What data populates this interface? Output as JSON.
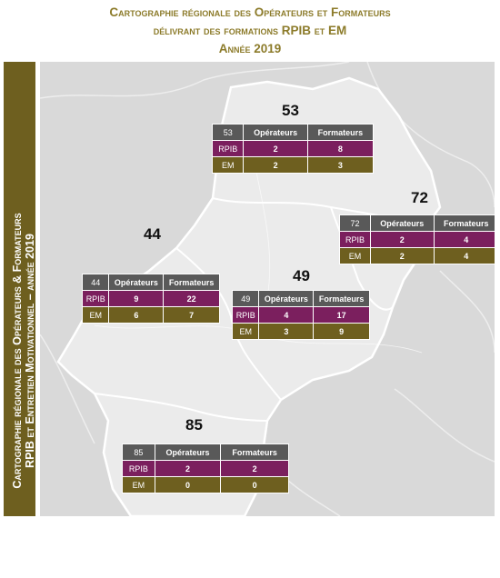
{
  "title": {
    "line1": "Cartographie régionale des Opérateurs et Formateurs",
    "line2": "délivrant des formations RPIB et EM",
    "line3": "Année 2019"
  },
  "sidebar": {
    "line1": "Cartographie régionale des Opérateurs & Formateurs",
    "line2": "RPIB et Entretien Motivationnel – année 2019"
  },
  "columns": {
    "operateurs": "Opérateurs",
    "formateurs": "Formateurs"
  },
  "row_labels": {
    "rpib": "RPIB",
    "em": "EM"
  },
  "colors": {
    "header": "#595959",
    "rpib": "#7b1f5e",
    "em": "#6e5f1f",
    "title": "#8c7b2a",
    "map_land": "#ebebeb",
    "map_bg": "#d9d9d9"
  },
  "departments": {
    "d53": {
      "code": "53",
      "rpib": {
        "operateurs": "2",
        "formateurs": "8"
      },
      "em": {
        "operateurs": "2",
        "formateurs": "3"
      }
    },
    "d72": {
      "code": "72",
      "rpib": {
        "operateurs": "2",
        "formateurs": "4"
      },
      "em": {
        "operateurs": "2",
        "formateurs": "4"
      }
    },
    "d44": {
      "code": "44",
      "rpib": {
        "operateurs": "9",
        "formateurs": "22"
      },
      "em": {
        "operateurs": "6",
        "formateurs": "7"
      }
    },
    "d49": {
      "code": "49",
      "rpib": {
        "operateurs": "4",
        "formateurs": "17"
      },
      "em": {
        "operateurs": "3",
        "formateurs": "9"
      }
    },
    "d85": {
      "code": "85",
      "rpib": {
        "operateurs": "2",
        "formateurs": "2"
      },
      "em": {
        "operateurs": "0",
        "formateurs": "0"
      }
    }
  }
}
